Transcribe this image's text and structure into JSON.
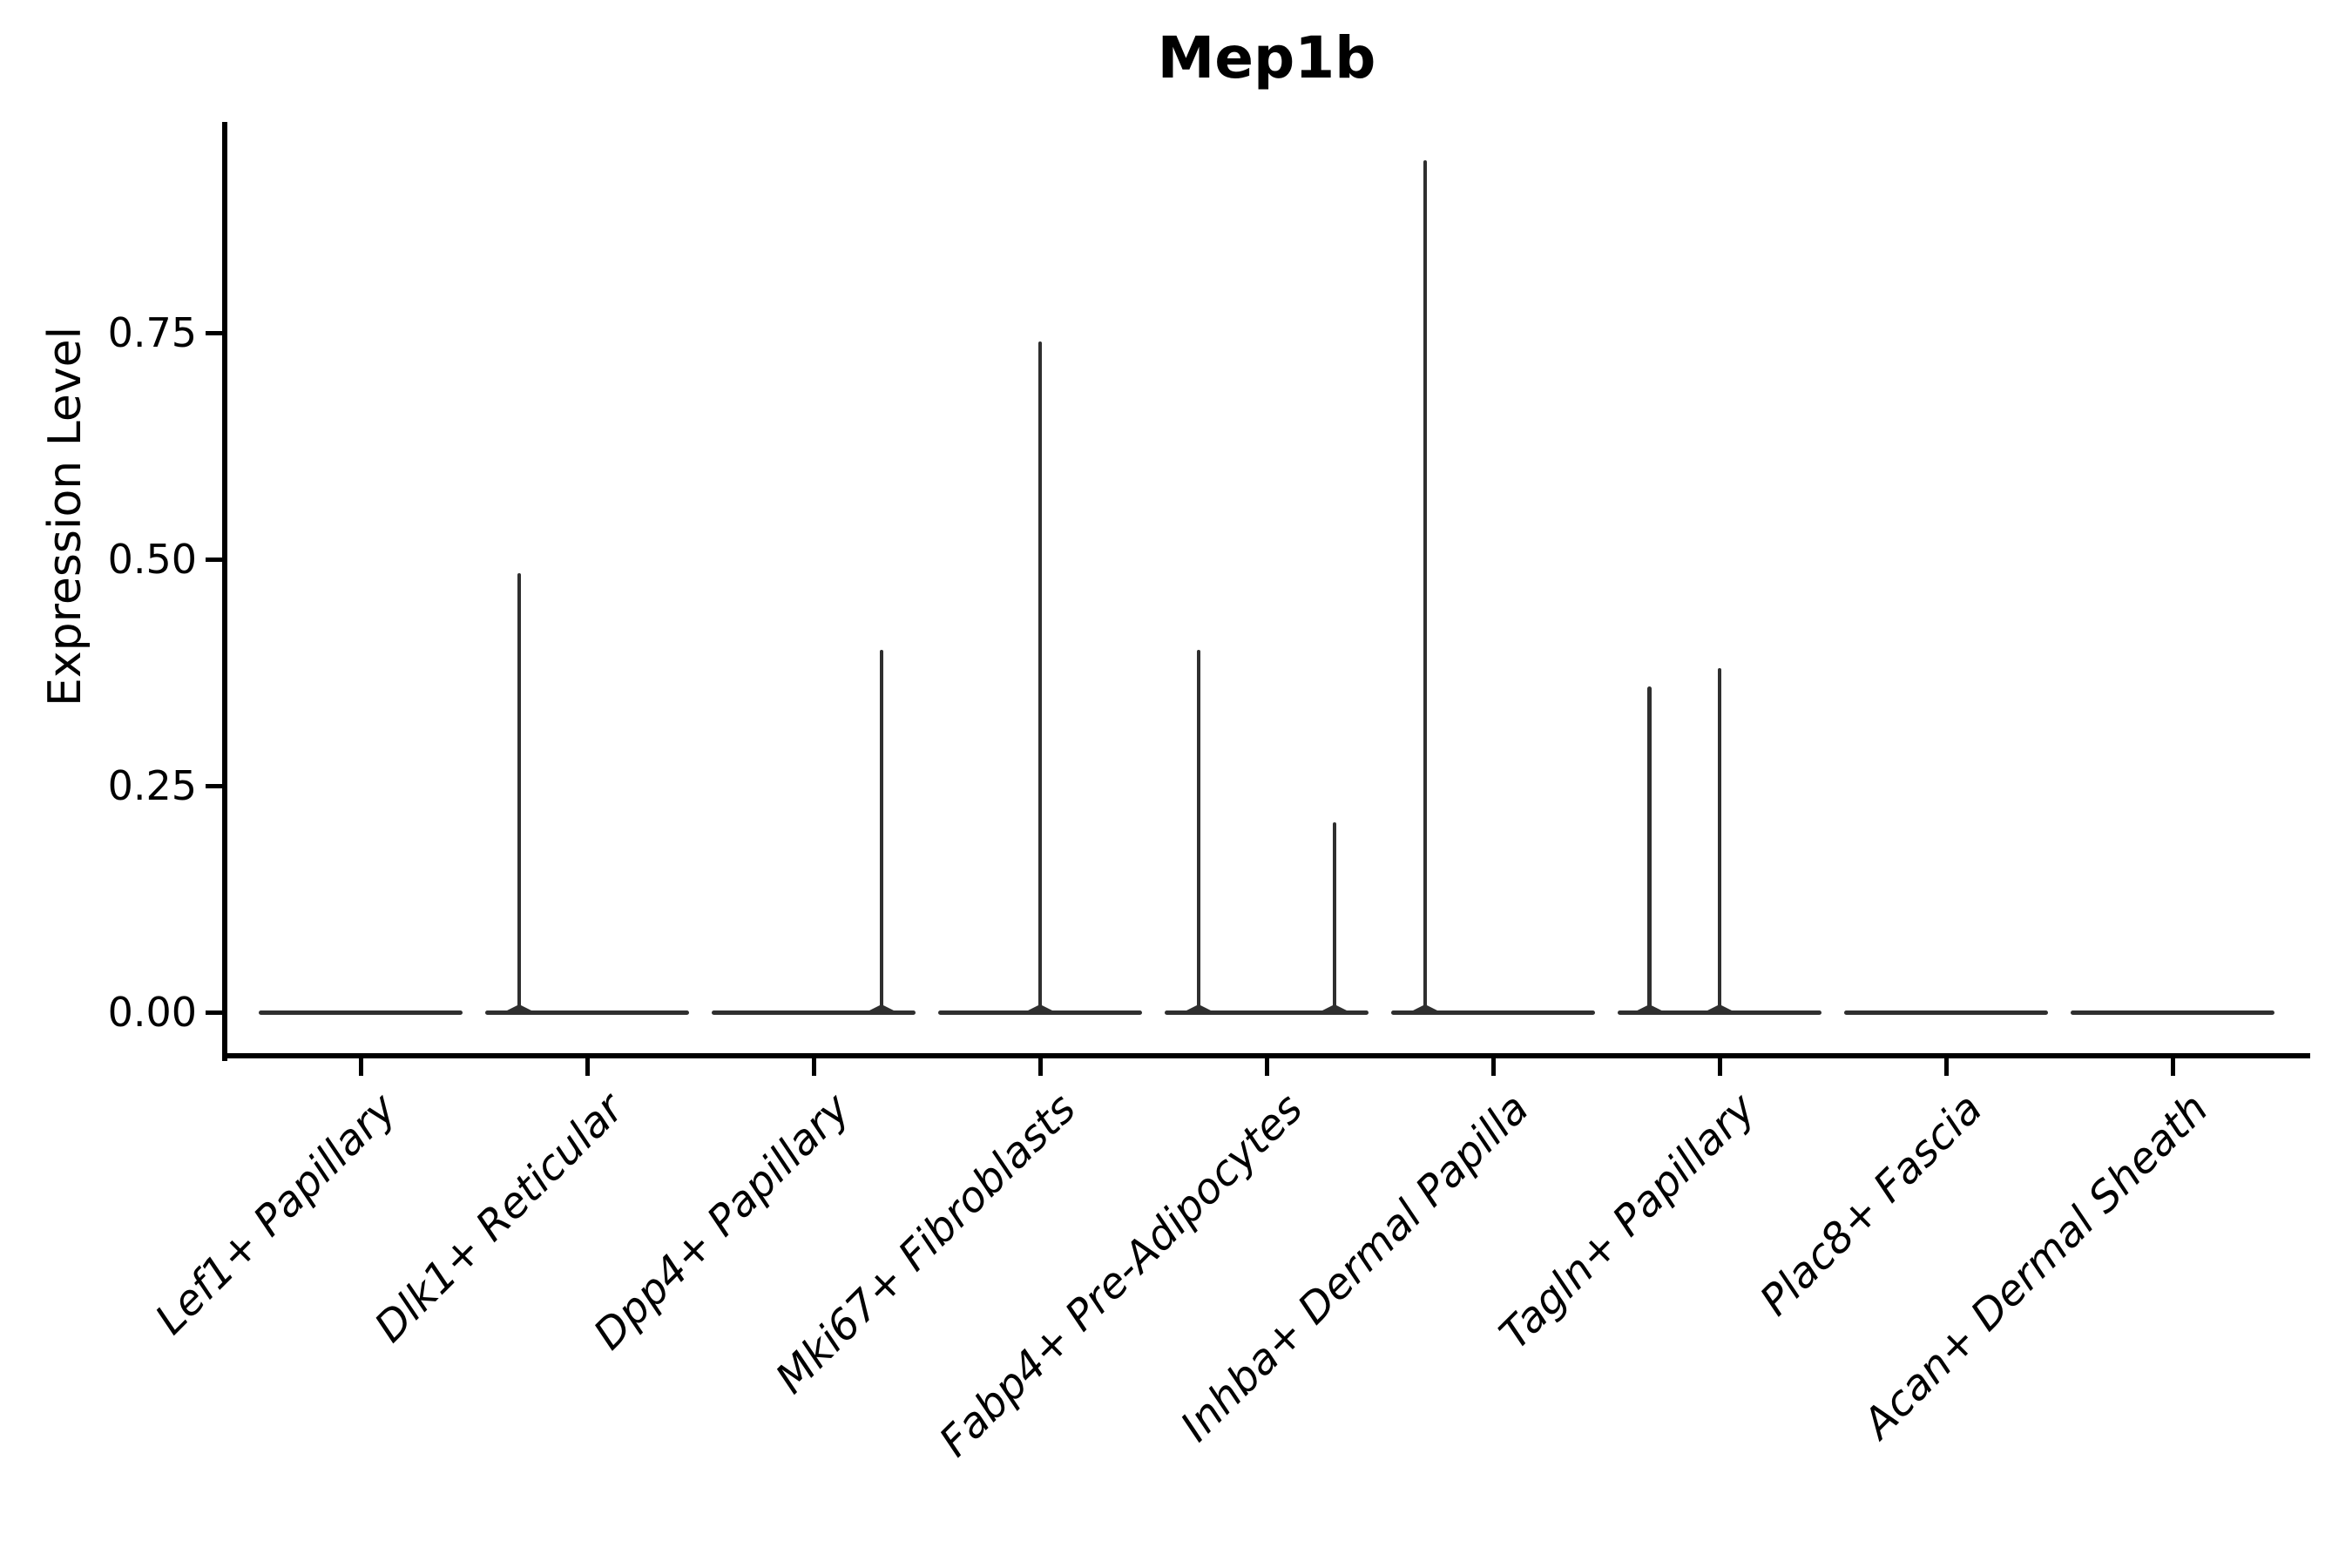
{
  "chart_data": {
    "type": "violin",
    "title": "Mep1b",
    "ylabel": "Expression Level",
    "xlabel": "",
    "yticks": [
      0.0,
      0.25,
      0.5,
      0.75
    ],
    "ylim": [
      0,
      0.98
    ],
    "grid": false,
    "legend": "none",
    "categories": [
      "Lef1+ Papillary",
      "Dlk1+ Reticular",
      "Dpp4+ Papillary",
      "Mki67+ Fibroblasts",
      "Fabp4+ Pre-Adipocytes",
      "Inhba+ Dermal Papilla",
      "Tagln+ Papillary",
      "Plac8+ Fascia",
      "Acan+ Dermal Sheath"
    ],
    "violins": [
      {
        "category": "Lef1+ Papillary",
        "baseline_value": 0,
        "spikes": []
      },
      {
        "category": "Dlk1+ Reticular",
        "baseline_value": 0,
        "spikes": [
          {
            "x_offset": -0.3,
            "value": 0.485
          }
        ]
      },
      {
        "category": "Dpp4+ Papillary",
        "baseline_value": 0,
        "spikes": [
          {
            "x_offset": 0.3,
            "value": 0.4
          }
        ]
      },
      {
        "category": "Mki67+ Fibroblasts",
        "baseline_value": 0,
        "spikes": [
          {
            "x_offset": 0.0,
            "value": 0.74
          }
        ]
      },
      {
        "category": "Fabp4+ Pre-Adipocytes",
        "baseline_value": 0,
        "spikes": [
          {
            "x_offset": -0.3,
            "value": 0.4
          },
          {
            "x_offset": 0.3,
            "value": 0.21
          }
        ]
      },
      {
        "category": "Inhba+ Dermal Papilla",
        "baseline_value": 0,
        "spikes": [
          {
            "x_offset": -0.3,
            "value": 0.94
          }
        ]
      },
      {
        "category": "Tagln+ Papillary",
        "baseline_value": 0,
        "spikes": [
          {
            "x_offset": -0.31,
            "value": 0.36
          },
          {
            "x_offset": 0.0,
            "value": 0.38
          }
        ]
      },
      {
        "category": "Plac8+ Fascia",
        "baseline_value": 0,
        "spikes": []
      },
      {
        "category": "Acan+ Dermal Sheath",
        "baseline_value": 0,
        "spikes": []
      }
    ]
  },
  "colors": {
    "violin_stroke": "#2f2f2f",
    "axis": "#000000",
    "text": "#000000",
    "background": "#ffffff"
  }
}
